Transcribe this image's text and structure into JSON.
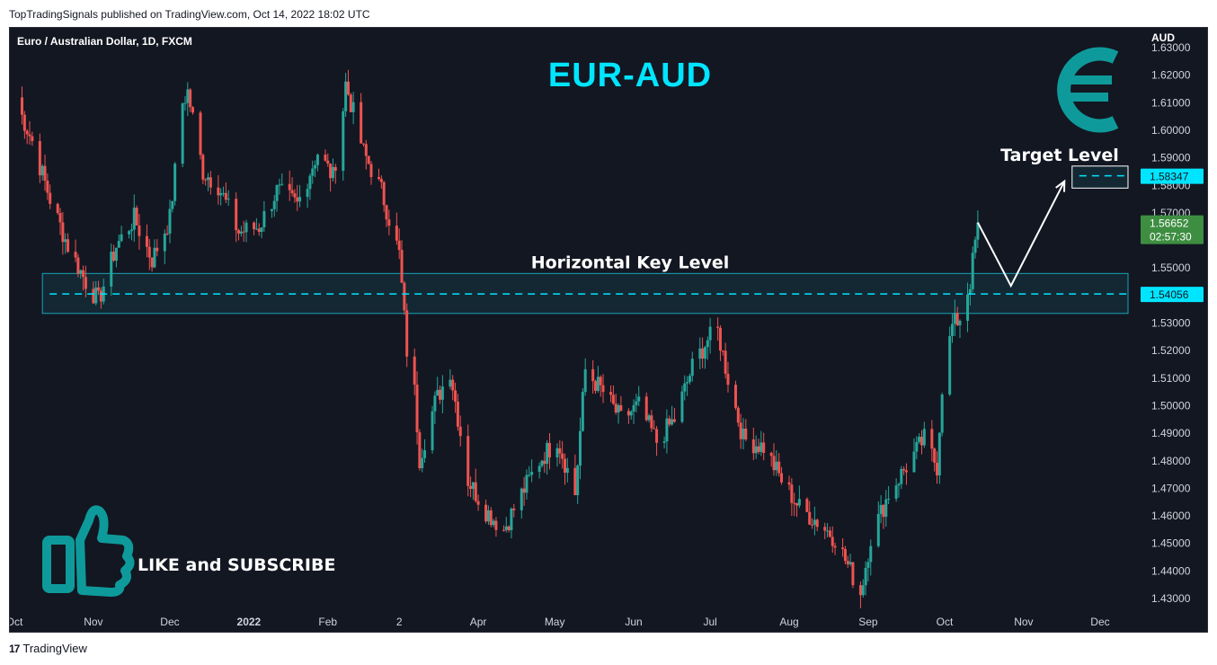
{
  "header": {
    "published": "TopTradingSignals published on TradingView.com, Oct 14, 2022 18:02 UTC"
  },
  "footer": {
    "brand": "TradingView",
    "logo": "tradingview-logo-icon"
  },
  "chart_data": {
    "type": "candlestick",
    "symbol_title": "Euro / Australian Dollar, 1D, FXCM",
    "title": "EUR-AUD",
    "currency_label": "AUD",
    "icon": "euro-icon",
    "cta_icon": "thumbs-up-icon",
    "cta_text": "LIKE and SUBSCRIBE",
    "colors": {
      "background": "#131722",
      "up": "#26a69a",
      "down": "#ef5350",
      "accent": "#00e5ff",
      "zone": "#17a4b8",
      "current_price": "#3e8e41"
    },
    "ylim": [
      1.425,
      1.635
    ],
    "y_ticks": [
      "1.63000",
      "1.62000",
      "1.61000",
      "1.60000",
      "1.59000",
      "1.58000",
      "1.57000",
      "1.56000",
      "1.55000",
      "1.54000",
      "1.53000",
      "1.52000",
      "1.51000",
      "1.50000",
      "1.49000",
      "1.48000",
      "1.47000",
      "1.46000",
      "1.45000",
      "1.44000",
      "1.43000"
    ],
    "x_ticks": [
      {
        "label": "Oct",
        "date": "2021-10-01"
      },
      {
        "label": "Nov",
        "date": "2021-11-01"
      },
      {
        "label": "Dec",
        "date": "2021-12-01"
      },
      {
        "label": "2022",
        "date": "2022-01-01",
        "bold": true
      },
      {
        "label": "Feb",
        "date": "2022-02-01"
      },
      {
        "label": "2",
        "date": "2022-03-01"
      },
      {
        "label": "Apr",
        "date": "2022-04-01"
      },
      {
        "label": "May",
        "date": "2022-05-01"
      },
      {
        "label": "Jun",
        "date": "2022-06-01"
      },
      {
        "label": "Jul",
        "date": "2022-07-01"
      },
      {
        "label": "Aug",
        "date": "2022-08-01"
      },
      {
        "label": "Sep",
        "date": "2022-09-01"
      },
      {
        "label": "Oct",
        "date": "2022-10-01"
      },
      {
        "label": "Nov",
        "date": "2022-11-01"
      },
      {
        "label": "Dec",
        "date": "2022-12-01"
      }
    ],
    "key_level": {
      "label": "Horizontal Key Level",
      "price": 1.54056,
      "price_label": "1.54056",
      "zone": [
        1.5335,
        1.548
      ],
      "start_date": "2021-10-12"
    },
    "target_level": {
      "label": "Target Level",
      "price": 1.58347,
      "price_label": "1.58347",
      "zone": [
        1.579,
        1.587
      ],
      "start_date": "2022-11-20"
    },
    "current_price": {
      "price": 1.56652,
      "price_label": "1.56652",
      "countdown": "02:57:30"
    },
    "projection": [
      {
        "date": "2022-10-14",
        "price": 1.5665
      },
      {
        "date": "2022-10-27",
        "price": 1.5435
      },
      {
        "date": "2022-11-17",
        "price": 1.5815
      }
    ],
    "x_anchors": [
      {
        "date": "2021-10-01",
        "price": 1.612
      },
      {
        "date": "2021-10-08",
        "price": 1.596
      },
      {
        "date": "2021-10-15",
        "price": 1.575
      },
      {
        "date": "2021-10-22",
        "price": 1.558
      },
      {
        "date": "2021-10-29",
        "price": 1.545
      },
      {
        "date": "2021-11-03",
        "price": 1.538
      },
      {
        "date": "2021-11-10",
        "price": 1.558
      },
      {
        "date": "2021-11-17",
        "price": 1.568
      },
      {
        "date": "2021-11-24",
        "price": 1.553
      },
      {
        "date": "2021-12-01",
        "price": 1.568
      },
      {
        "date": "2021-12-06",
        "price": 1.61
      },
      {
        "date": "2021-12-08",
        "price": 1.614
      },
      {
        "date": "2021-12-14",
        "price": 1.585
      },
      {
        "date": "2021-12-20",
        "price": 1.58
      },
      {
        "date": "2021-12-28",
        "price": 1.563
      },
      {
        "date": "2022-01-05",
        "price": 1.565
      },
      {
        "date": "2022-01-12",
        "price": 1.578
      },
      {
        "date": "2022-01-20",
        "price": 1.573
      },
      {
        "date": "2022-01-28",
        "price": 1.592
      },
      {
        "date": "2022-02-03",
        "price": 1.583
      },
      {
        "date": "2022-02-07",
        "price": 1.608
      },
      {
        "date": "2022-02-08",
        "price": 1.617
      },
      {
        "date": "2022-02-15",
        "price": 1.592
      },
      {
        "date": "2022-02-22",
        "price": 1.578
      },
      {
        "date": "2022-03-01",
        "price": 1.555
      },
      {
        "date": "2022-03-04",
        "price": 1.52
      },
      {
        "date": "2022-03-07",
        "price": 1.505
      },
      {
        "date": "2022-03-09",
        "price": 1.481
      },
      {
        "date": "2022-03-15",
        "price": 1.501
      },
      {
        "date": "2022-03-21",
        "price": 1.513
      },
      {
        "date": "2022-03-28",
        "price": 1.473
      },
      {
        "date": "2022-04-04",
        "price": 1.462
      },
      {
        "date": "2022-04-11",
        "price": 1.455
      },
      {
        "date": "2022-04-18",
        "price": 1.468
      },
      {
        "date": "2022-04-25",
        "price": 1.48
      },
      {
        "date": "2022-05-02",
        "price": 1.488
      },
      {
        "date": "2022-05-09",
        "price": 1.468
      },
      {
        "date": "2022-05-13",
        "price": 1.513
      },
      {
        "date": "2022-05-20",
        "price": 1.505
      },
      {
        "date": "2022-05-27",
        "price": 1.495
      },
      {
        "date": "2022-06-03",
        "price": 1.5
      },
      {
        "date": "2022-06-10",
        "price": 1.487
      },
      {
        "date": "2022-06-17",
        "price": 1.495
      },
      {
        "date": "2022-06-24",
        "price": 1.514
      },
      {
        "date": "2022-06-30",
        "price": 1.524
      },
      {
        "date": "2022-07-04",
        "price": 1.527
      },
      {
        "date": "2022-07-08",
        "price": 1.51
      },
      {
        "date": "2022-07-14",
        "price": 1.488
      },
      {
        "date": "2022-07-22",
        "price": 1.485
      },
      {
        "date": "2022-07-29",
        "price": 1.473
      },
      {
        "date": "2022-08-05",
        "price": 1.463
      },
      {
        "date": "2022-08-12",
        "price": 1.458
      },
      {
        "date": "2022-08-19",
        "price": 1.452
      },
      {
        "date": "2022-08-25",
        "price": 1.44
      },
      {
        "date": "2022-08-29",
        "price": 1.432
      },
      {
        "date": "2022-09-02",
        "price": 1.452
      },
      {
        "date": "2022-09-09",
        "price": 1.468
      },
      {
        "date": "2022-09-16",
        "price": 1.478
      },
      {
        "date": "2022-09-23",
        "price": 1.488
      },
      {
        "date": "2022-09-28",
        "price": 1.478
      },
      {
        "date": "2022-09-30",
        "price": 1.507
      },
      {
        "date": "2022-10-04",
        "price": 1.529
      },
      {
        "date": "2022-10-07",
        "price": 1.532
      },
      {
        "date": "2022-10-11",
        "price": 1.545
      },
      {
        "date": "2022-10-14",
        "price": 1.5665
      }
    ]
  }
}
